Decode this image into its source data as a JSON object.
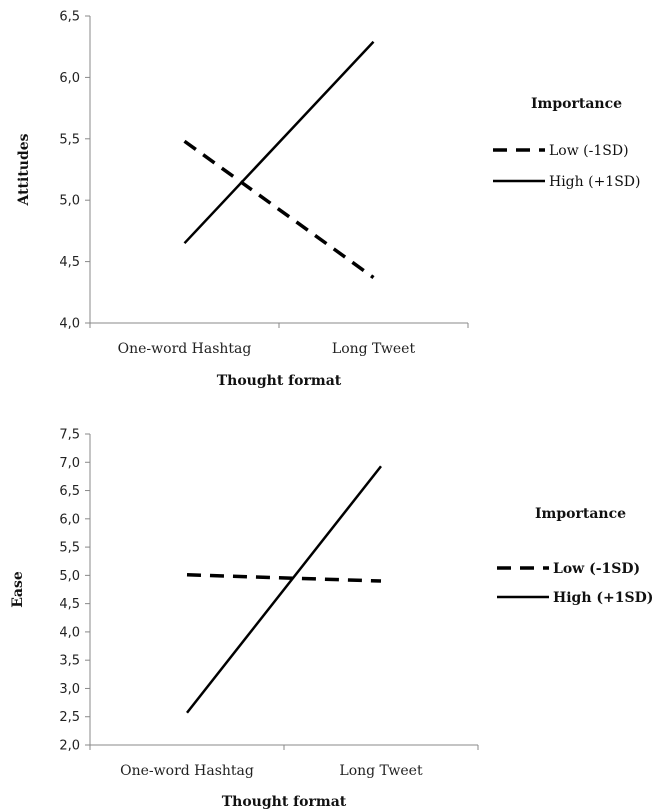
{
  "chart_data": [
    {
      "type": "line",
      "xlabel": "Thought format",
      "ylabel": "Attitudes",
      "ylim": [
        4.0,
        6.5
      ],
      "yticks": [
        "4,0",
        "4,5",
        "5,0",
        "5,5",
        "6,0",
        "6,5"
      ],
      "categories": [
        "One-word Hashtag",
        "Long Tweet"
      ],
      "legend_title": "Importance",
      "legend_bold": false,
      "legend_position": "right",
      "series": [
        {
          "name": "Low (-1SD)",
          "style": "dashed",
          "values": [
            5.48,
            4.37
          ]
        },
        {
          "name": "High (+1SD)",
          "style": "solid",
          "values": [
            4.65,
            6.29
          ]
        }
      ]
    },
    {
      "type": "line",
      "xlabel": "Thought format",
      "ylabel": "Ease",
      "ylim": [
        2.0,
        7.5
      ],
      "yticks": [
        "2,0",
        "2,5",
        "3,0",
        "3,5",
        "4,0",
        "4,5",
        "5,0",
        "5,5",
        "6,0",
        "6,5",
        "7,0",
        "7,5"
      ],
      "categories": [
        "One-word Hashtag",
        "Long Tweet"
      ],
      "legend_title": "Importance",
      "legend_bold": true,
      "legend_position": "right",
      "series": [
        {
          "name": "Low (-1SD)",
          "style": "dashed",
          "values": [
            5.01,
            4.9
          ]
        },
        {
          "name": "High (+1SD)",
          "style": "solid",
          "values": [
            2.57,
            6.93
          ]
        }
      ]
    }
  ]
}
